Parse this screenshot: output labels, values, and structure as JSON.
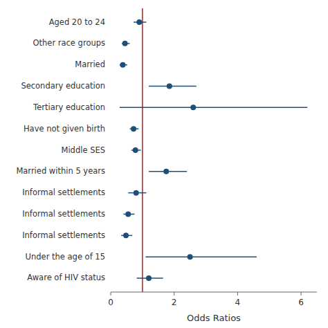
{
  "chart_data": {
    "type": "forest",
    "xlabel": "Odds Ratios",
    "categories": [
      "Aged 20 to 24",
      "Other race groups",
      "Married",
      "Secondary education",
      "Tertiary education",
      "Have not given birth",
      "Middle SES",
      "Married within 5 years",
      "Informal settlements",
      "Informal settlements",
      "Informal settlements",
      "Under the age of 15",
      "Aware of HIV status"
    ],
    "values": [
      0.9,
      0.45,
      0.38,
      1.85,
      2.6,
      0.72,
      0.78,
      1.75,
      0.8,
      0.55,
      0.48,
      2.5,
      1.2
    ],
    "ci_low": [
      0.72,
      0.35,
      0.28,
      1.2,
      0.28,
      0.6,
      0.65,
      1.2,
      0.55,
      0.4,
      0.33,
      1.1,
      0.82
    ],
    "ci_high": [
      1.12,
      0.6,
      0.52,
      2.7,
      6.2,
      0.88,
      0.95,
      2.4,
      1.12,
      0.75,
      0.68,
      4.6,
      1.65
    ],
    "color": "#1f4e79",
    "reference_line": {
      "value": 1.0,
      "color": "#b52020"
    },
    "xlim": [
      0,
      6.5
    ],
    "xticks": [
      0,
      2,
      4,
      6
    ],
    "grid": false
  }
}
